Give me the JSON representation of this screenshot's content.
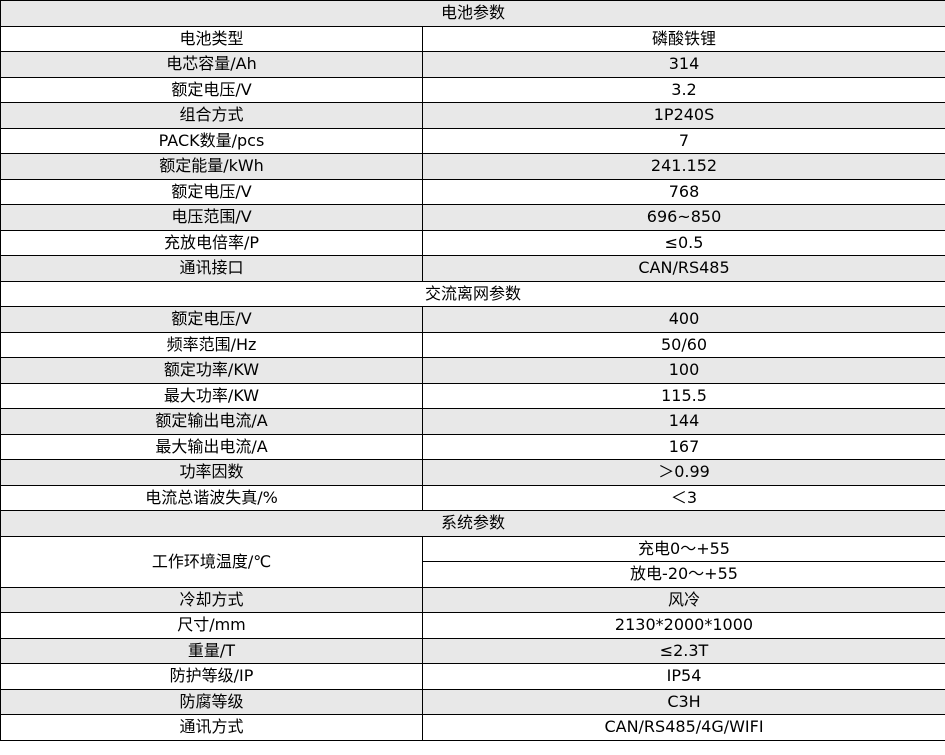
{
  "sections": [
    {
      "title": "电池参数",
      "rows": [
        {
          "label": "电池类型",
          "value": "磷酸铁锂"
        },
        {
          "label": "电芯容量/Ah",
          "value": "314"
        },
        {
          "label": "额定电压/V",
          "value": "3.2"
        },
        {
          "label": "组合方式",
          "value": "1P240S"
        },
        {
          "label": "PACK数量/pcs",
          "value": "7"
        },
        {
          "label": "额定能量/kWh",
          "value": "241.152"
        },
        {
          "label": "额定电压/V",
          "value": "768"
        },
        {
          "label": "电压范围/V",
          "value": "696~850"
        },
        {
          "label": "充放电倍率/P",
          "value": "≤0.5"
        },
        {
          "label": "通讯接口",
          "value": "CAN/RS485"
        }
      ]
    },
    {
      "title": "交流离网参数",
      "rows": [
        {
          "label": "额定电压/V",
          "value": "400"
        },
        {
          "label": "频率范围/Hz",
          "value": "50/60"
        },
        {
          "label": "额定功率/KW",
          "value": "100"
        },
        {
          "label": "最大功率/KW",
          "value": "115.5"
        },
        {
          "label": "额定输出电流/A",
          "value": "144"
        },
        {
          "label": "最大输出电流/A",
          "value": "167"
        },
        {
          "label": "功率因数",
          "value": "＞0.99"
        },
        {
          "label": "电流总谐波失真/%",
          "value": "＜3"
        }
      ]
    },
    {
      "title": "系统参数",
      "temperature": {
        "label": "工作环境温度/℃",
        "charge": "充电0～+55",
        "discharge": "放电-20～+55"
      },
      "rows": [
        {
          "label": "冷却方式",
          "value": "风冷"
        },
        {
          "label": "尺寸/mm",
          "value": "2130*2000*1000"
        },
        {
          "label": "重量/T",
          "value": "≤2.3T"
        },
        {
          "label": "防护等级/IP",
          "value": "IP54"
        },
        {
          "label": "防腐等级",
          "value": "C3H"
        },
        {
          "label": "通讯方式",
          "value": "CAN/RS485/4G/WIFI"
        }
      ]
    }
  ]
}
